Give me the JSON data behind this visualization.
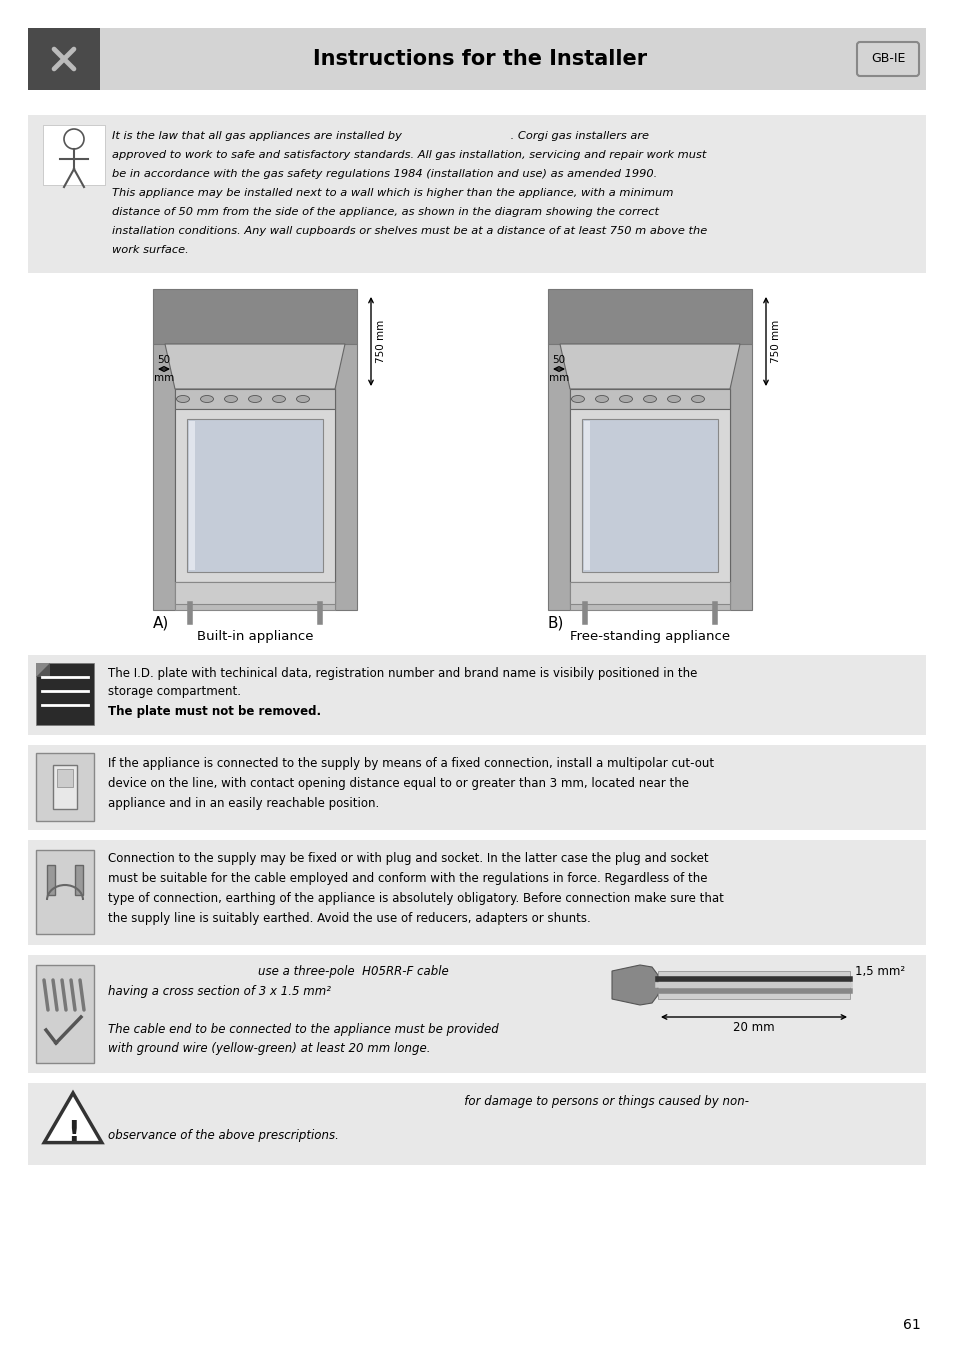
{
  "title": "Instructions for the Installer",
  "gb_ie_label": "GB-IE",
  "bg_color": "#ffffff",
  "header_bg": "#d4d4d4",
  "section_bg": "#e8e8e8",
  "text_color": "#000000",
  "page_number": "61",
  "caption_left": "Built-in appliance",
  "caption_right": "Free-standing appliance",
  "para1_lines": [
    "It is the law that all gas appliances are installed by                              . Corgi gas installers are",
    "approved to work to safe and satisfactory standards. All gas installation, servicing and repair work must",
    "be in accordance with the gas safety regulations 1984 (installation and use) as amended 1990.",
    "This appliance may be installed next to a wall which is higher than the appliance, with a minimum",
    "distance of 50 mm from the side of the appliance, as shown in the diagram showing the correct",
    "installation conditions. Any wall cupboards or shelves must be at a distance of at least 750 m above the",
    "work surface."
  ],
  "para2_line1": "The I.D. plate with techinical data, registration number and brand name is visibily positioned in the",
  "para2_line2": "storage compartment.",
  "para2_bold": "The plate must not be removed.",
  "para3_lines": [
    "If the appliance is connected to the supply by means of a fixed connection, install a multipolar cut-out",
    "device on the line, with contact opening distance equal to or greater than 3 mm, located near the",
    "appliance and in an easily reachable position."
  ],
  "para3_bold_word": "3 mm",
  "para4_lines": [
    "Connection to the supply may be fixed or with plug and socket. In the latter case the plug and socket",
    "must be suitable for the cable employed and conform with the regulations in force. Regardless of the",
    "type of connection, earthing of the appliance is absolutely obligatory. Before connection make sure that",
    "the supply line is suitably earthed. Avoid the use of reducers, adapters or shunts."
  ],
  "para5_line1": "                                        use a three-pole  H05RR-F cable",
  "para5_line2": "having a cross section of 3 x 1.5 mm²",
  "para5_line3": "",
  "para5_line4": "The cable end to be connected to the appliance must be provided",
  "para5_line5": "with ground wire (yellow-green) at least 20 mm longe.",
  "para5_label": "1,5 mm²",
  "para5_dim": "20 mm",
  "para6_line1": "                                                                                               for damage to persons or things caused by non-",
  "para6_line2": "observance of the above prescriptions.",
  "icon_tool_color": "#555555",
  "icon_wrench_color": "#aaaaaa"
}
